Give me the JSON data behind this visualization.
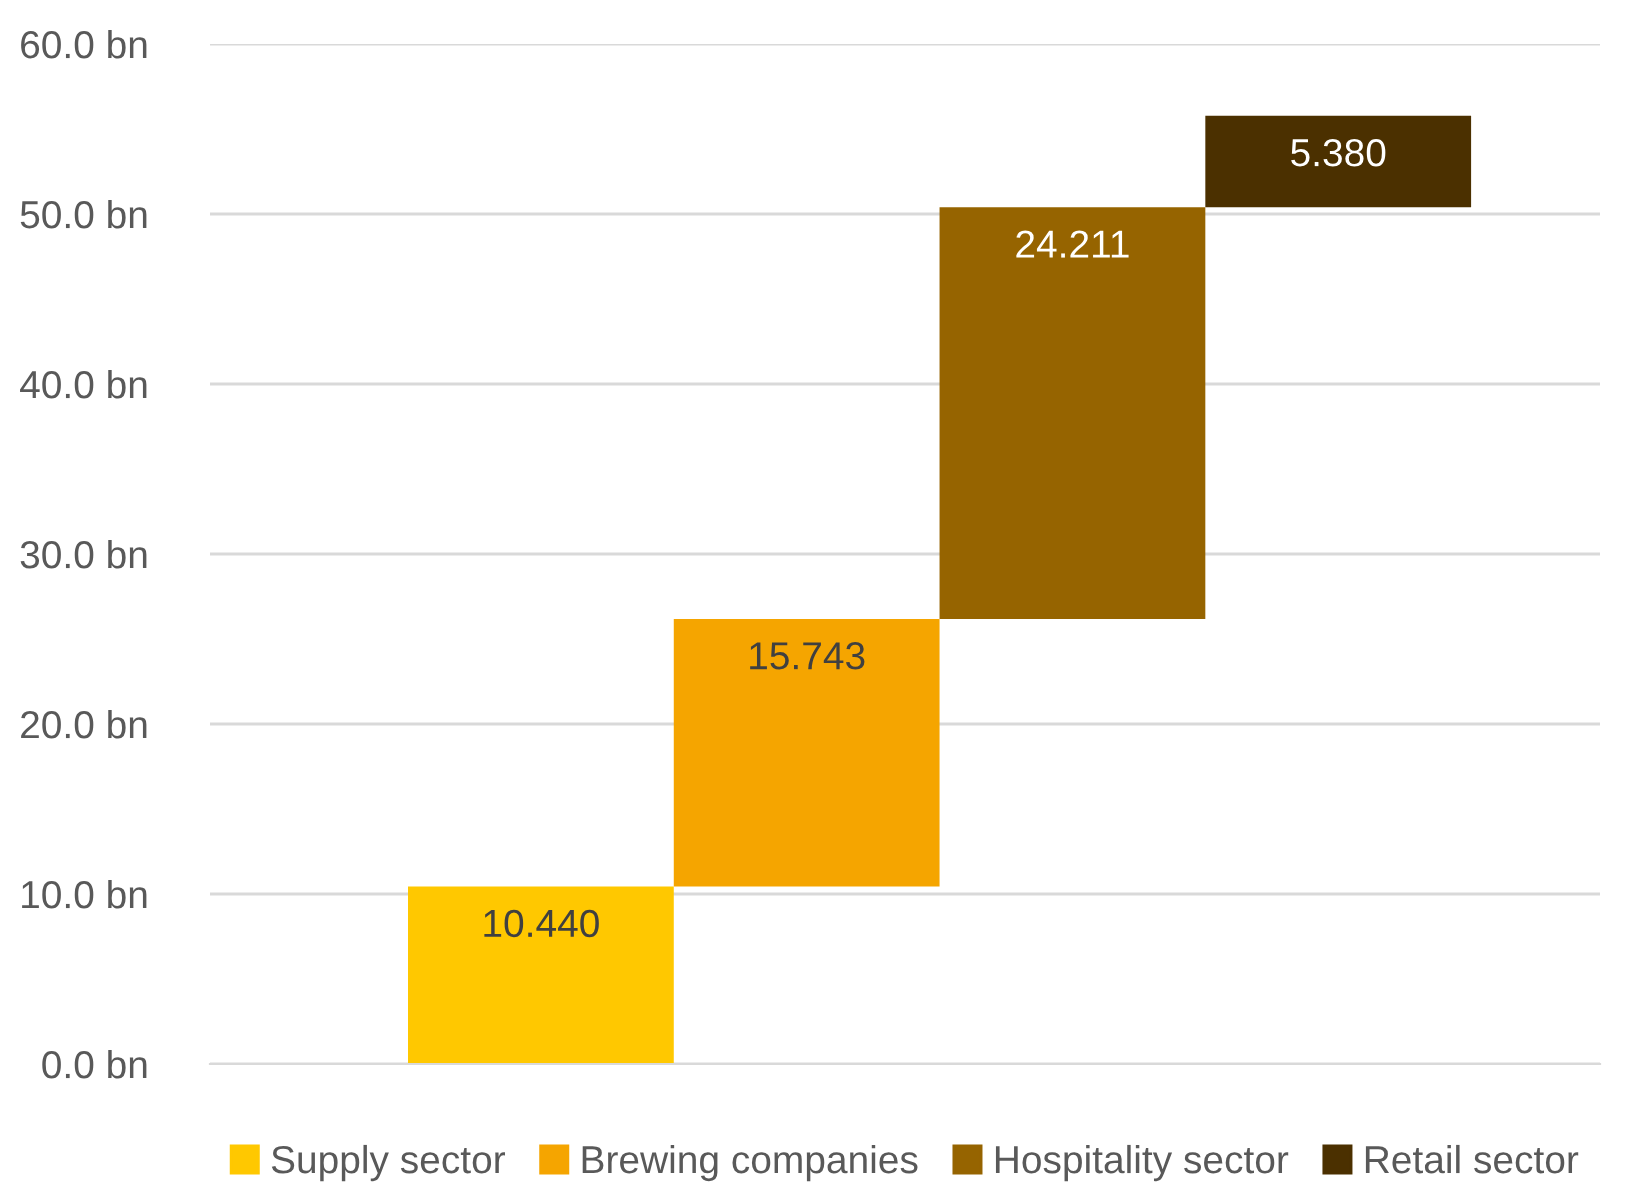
{
  "chart_data": {
    "type": "bar",
    "categories": [
      null,
      null,
      null,
      null
    ],
    "series": [
      {
        "name": "Supply sector",
        "color": "#ffc800",
        "values": [
          10.44,
          null,
          null,
          null
        ],
        "base": [
          0,
          null,
          null,
          null
        ],
        "value_labels": [
          "10.440",
          null,
          null,
          null
        ]
      },
      {
        "name": "Brewing companies",
        "color": "#f5a500",
        "values": [
          null,
          15.743,
          null,
          null
        ],
        "base": [
          null,
          10.44,
          null,
          null
        ],
        "value_labels": [
          null,
          "15.743",
          null,
          null
        ]
      },
      {
        "name": "Hospitality sector",
        "color": "#966400",
        "values": [
          null,
          null,
          24.211,
          null
        ],
        "base": [
          null,
          null,
          26.183,
          null
        ],
        "value_labels": [
          null,
          null,
          "24.211",
          null
        ]
      },
      {
        "name": "Retail sector",
        "color": "#4b3000",
        "values": [
          null,
          null,
          null,
          5.38
        ],
        "base": [
          null,
          null,
          null,
          50.394
        ],
        "value_labels": [
          null,
          null,
          null,
          "5.380"
        ]
      }
    ],
    "ylim": [
      0,
      60
    ],
    "yticks": [
      {
        "value": 0,
        "label": "0.0 bn"
      },
      {
        "value": 10,
        "label": "10.0 bn"
      },
      {
        "value": 20,
        "label": "20.0 bn"
      },
      {
        "value": 30,
        "label": "30.0 bn"
      },
      {
        "value": 40,
        "label": "40.0 bn"
      },
      {
        "value": 50,
        "label": "50.0 bn"
      },
      {
        "value": 60,
        "label": "60.0 bn"
      }
    ],
    "grid": "y",
    "legend": "bottom"
  }
}
